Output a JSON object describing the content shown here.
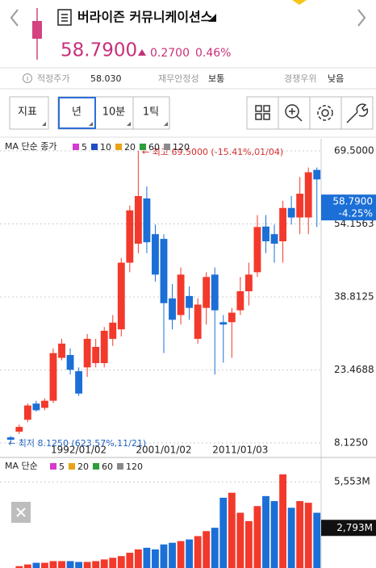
{
  "header": {
    "title": "버라이즌 커뮤니케이션스",
    "price": "58.7900",
    "change": "0.2700",
    "change_pct": "0.46%"
  },
  "summary": [
    {
      "label": "적정주가",
      "value": "58.030"
    },
    {
      "label": "재무안정성",
      "value": "보통"
    },
    {
      "label": "경쟁우위",
      "value": "낮음"
    }
  ],
  "toolbar": {
    "indicator": "지표",
    "periods": [
      "년",
      "10분",
      "1틱"
    ]
  },
  "chart_data": [
    {
      "type": "candlestick",
      "legend_title": "MA 단순 종가",
      "ma": [
        {
          "name": "5",
          "color": "#d63ad0"
        },
        {
          "name": "10",
          "color": "#1f4fc4"
        },
        {
          "name": "20",
          "color": "#e8a317"
        },
        {
          "name": "60",
          "color": "#2e9e3a"
        },
        {
          "name": "120",
          "color": "#8a8a8a"
        }
      ],
      "x": [
        null,
        null,
        null,
        null,
        null,
        null,
        null,
        null,
        "1992/01/02",
        null,
        null,
        null,
        null,
        null,
        null,
        null,
        null,
        null,
        "2001/01/02",
        null,
        null,
        null,
        null,
        null,
        null,
        null,
        null,
        "2011/01/03",
        null,
        null,
        null,
        null,
        null,
        null,
        null,
        null,
        null
      ],
      "open": [
        9.3,
        10.5,
        13,
        16.4,
        15.5,
        17,
        26,
        26.6,
        23.2,
        24,
        24.9,
        24.9,
        30,
        32,
        46,
        50,
        59.5,
        52,
        51,
        38.5,
        35,
        39,
        30,
        36.5,
        43.5,
        33.5,
        33.5,
        36,
        40,
        44,
        53.6,
        52,
        50.5,
        57.5,
        55.5,
        55.5,
        65.5
      ],
      "high": [
        9.6,
        12,
        16.4,
        17,
        17.5,
        28,
        30,
        28,
        24,
        31,
        30,
        32.5,
        35,
        47,
        58,
        69.5,
        62,
        54,
        52,
        41.5,
        45,
        41,
        38.5,
        44,
        45,
        35,
        36.5,
        43,
        46,
        56,
        56,
        54,
        59,
        60,
        64,
        66,
        66
      ],
      "low": [
        8.125,
        10,
        12.5,
        14.7,
        15,
        16.5,
        25.5,
        22.5,
        18,
        22,
        24,
        24,
        28.5,
        30.5,
        44,
        48,
        48,
        42,
        27,
        32,
        33,
        34,
        29,
        33,
        22.5,
        25,
        26,
        35,
        37,
        43,
        48,
        46,
        46,
        54,
        52,
        52,
        53.5
      ],
      "close": [
        8.8,
        11.5,
        16,
        15,
        17,
        27,
        29,
        23.5,
        18.5,
        30,
        28.3,
        31.7,
        33.4,
        46,
        57,
        60,
        50.3,
        43.5,
        37.5,
        34,
        43.5,
        36.5,
        37.2,
        43,
        36,
        33,
        35.5,
        40,
        43.5,
        53.5,
        50.5,
        50,
        57.5,
        55.5,
        60.5,
        65,
        63.5
      ],
      "up_color": "#f2392b",
      "down_color": "#1b6fd6",
      "ylim": [
        6.26,
        71.53
      ],
      "yticks": [
        {
          "value": 69.5,
          "label": "69.5000"
        },
        {
          "value": 54.1563,
          "label": "54.1563"
        },
        {
          "value": 38.8125,
          "label": "38.8125"
        },
        {
          "value": 23.4688,
          "label": "23.4688"
        },
        {
          "value": 8.125,
          "label": "8.1250"
        }
      ],
      "grid": true,
      "high_note": "← 최고 69.5000 (-15.41%,01/04)",
      "low_note": "← 최저 8.1250 (623.57%,11/21)",
      "last_price": {
        "value": 58.79,
        "label": "58.7900"
      },
      "last_change": "-4.25%"
    },
    {
      "type": "bar",
      "legend_title": "MA 단순",
      "ma": [
        {
          "name": "5",
          "color": "#d63ad0"
        },
        {
          "name": "20",
          "color": "#e8a317"
        },
        {
          "name": "60",
          "color": "#2e9e3a"
        },
        {
          "name": "120",
          "color": "#8a8a8a"
        }
      ],
      "values": [
        300,
        500,
        600,
        700,
        700,
        800,
        800,
        800,
        750,
        750,
        800,
        900,
        1000,
        1100,
        1300,
        1500,
        1600,
        1500,
        1800,
        1900,
        2000,
        2100,
        2300,
        2600,
        2800,
        4600,
        4900,
        3700,
        3200,
        4100,
        4700,
        4400,
        6000,
        4000,
        4400,
        4300,
        3700
      ],
      "ylim": [
        0,
        6870
      ],
      "yticks": [
        {
          "value": 5553,
          "label": "5,553M"
        }
      ],
      "last_volume": {
        "value": 2793,
        "label": "2,793M"
      }
    }
  ]
}
